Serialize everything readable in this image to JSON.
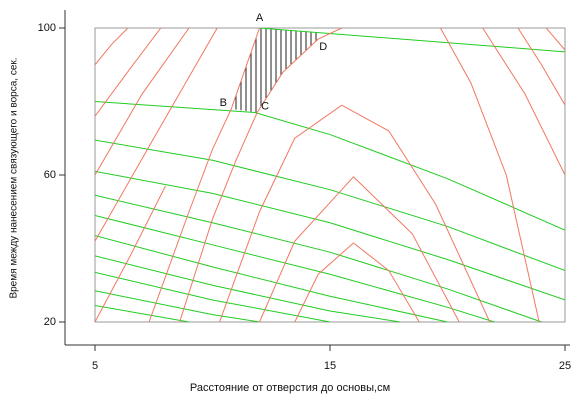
{
  "chart_data": {
    "type": "line",
    "x_label": "Расстояние от отверстия до основы,см",
    "y_label": "Время между нанесением связующего и ворса, сек.",
    "xlim": [
      5,
      25
    ],
    "ylim": [
      20,
      100
    ],
    "xticks": [
      5,
      15,
      25
    ],
    "yticks": [
      20,
      60,
      100
    ],
    "series": [
      {
        "color": "#22cc22",
        "x": [
          12,
          18,
          25
        ],
        "values": [
          100,
          97,
          93.5
        ]
      },
      {
        "color": "#22cc22",
        "x": [
          5,
          11.8,
          15,
          20,
          25
        ],
        "values": [
          80,
          77,
          71,
          59,
          45
        ]
      },
      {
        "color": "#22cc22",
        "x": [
          5,
          10,
          15,
          20,
          25
        ],
        "values": [
          69.5,
          64,
          56,
          46,
          34
        ]
      },
      {
        "color": "#22cc22",
        "x": [
          5,
          10,
          15,
          20,
          25
        ],
        "values": [
          61,
          55,
          47,
          37,
          26
        ]
      },
      {
        "color": "#22cc22",
        "x": [
          5,
          10,
          15,
          20,
          24
        ],
        "values": [
          54.5,
          47,
          39,
          29,
          20
        ]
      },
      {
        "color": "#22cc22",
        "x": [
          5,
          10,
          15,
          20,
          22
        ],
        "values": [
          49,
          41,
          33,
          24,
          20
        ]
      },
      {
        "color": "#22cc22",
        "x": [
          5,
          10,
          15,
          20
        ],
        "values": [
          43.5,
          35,
          27,
          20
        ]
      },
      {
        "color": "#22cc22",
        "x": [
          5,
          10,
          15,
          18
        ],
        "values": [
          38,
          30,
          23,
          20
        ]
      },
      {
        "color": "#22cc22",
        "x": [
          5,
          10,
          15
        ],
        "values": [
          33.5,
          26,
          20
        ]
      },
      {
        "color": "#22cc22",
        "x": [
          5,
          10,
          12
        ],
        "values": [
          28.5,
          22,
          20
        ]
      },
      {
        "color": "#22cc22",
        "x": [
          5,
          9
        ],
        "values": [
          24.5,
          20
        ]
      },
      {
        "color": "#f07860",
        "x": [
          8.6,
          10,
          11,
          11.9,
          13,
          14.5,
          15.5,
          17.5,
          19.7,
          21,
          22.5,
          23.9
        ],
        "values": [
          20,
          48,
          64,
          77,
          88,
          97,
          100,
          null,
          100,
          85,
          60,
          20
        ]
      },
      {
        "color": "#f07860",
        "x": [
          10.3,
          12,
          13.5,
          15.5,
          17.5,
          19.5,
          21.8
        ],
        "values": [
          20,
          50,
          70,
          79,
          72,
          52,
          20
        ]
      },
      {
        "color": "#f07860",
        "x": [
          12,
          13.5,
          16,
          18.5,
          20.5
        ],
        "values": [
          20,
          42,
          59.5,
          44,
          20
        ]
      },
      {
        "color": "#f07860",
        "x": [
          13.5,
          14.5,
          16,
          17.5,
          18.8
        ],
        "values": [
          20,
          33,
          41.5,
          34,
          20
        ]
      },
      {
        "color": "#f07860",
        "x": [
          7.3,
          9,
          10,
          10.8,
          12
        ],
        "values": [
          20,
          50,
          67,
          78,
          100
        ]
      },
      {
        "color": "#f07860",
        "x": [
          5,
          5.7,
          6.4
        ],
        "values": [
          90,
          95.5,
          100
        ]
      },
      {
        "color": "#f07860",
        "x": [
          5,
          6.5,
          7.8
        ],
        "values": [
          76,
          89,
          100
        ]
      },
      {
        "color": "#f07860",
        "x": [
          5,
          7,
          9
        ],
        "values": [
          60,
          82,
          100
        ]
      },
      {
        "color": "#f07860",
        "x": [
          5,
          7.5,
          10.2
        ],
        "values": [
          42,
          70,
          100
        ]
      },
      {
        "color": "#f07860",
        "x": [
          5,
          6.5,
          8
        ],
        "values": [
          20,
          38,
          57
        ]
      },
      {
        "color": "#f07860",
        "x": [
          21.5,
          23.3,
          25
        ],
        "values": [
          100,
          82,
          60
        ]
      },
      {
        "color": "#f07860",
        "x": [
          23,
          24,
          25
        ],
        "values": [
          100,
          90,
          79
        ]
      },
      {
        "color": "#f07860",
        "x": [
          24.2,
          25
        ],
        "values": [
          100,
          94
        ]
      }
    ],
    "annotations": [
      {
        "text": "A",
        "x": 12,
        "y": 100
      },
      {
        "text": "B",
        "x": 10.8,
        "y": 78
      },
      {
        "text": "C",
        "x": 11.9,
        "y": 77
      },
      {
        "text": "D",
        "x": 14.5,
        "y": 97
      }
    ]
  }
}
